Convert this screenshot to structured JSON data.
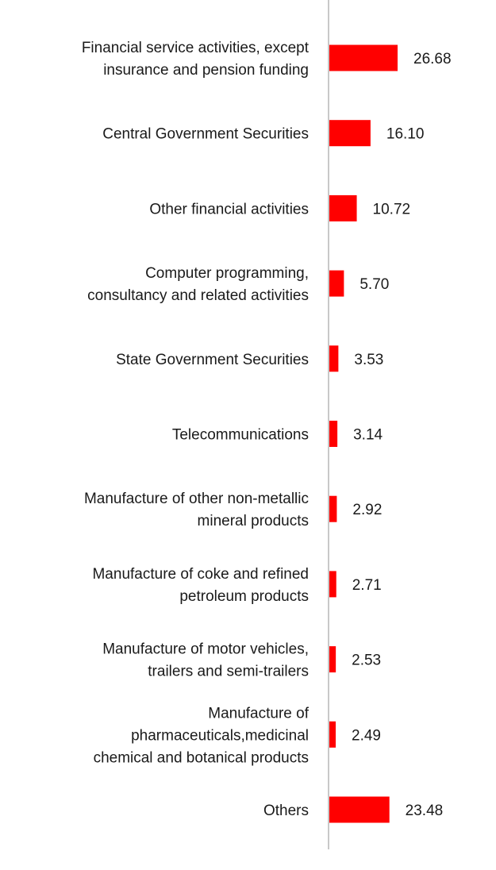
{
  "chart_data": {
    "type": "bar",
    "orientation": "horizontal",
    "categories": [
      [
        "Financial service activities, except",
        "insurance and pension funding"
      ],
      [
        "Central Government Securities"
      ],
      [
        "Other financial activities"
      ],
      [
        "Computer programming,",
        "consultancy and related activities"
      ],
      [
        "State Government Securities"
      ],
      [
        "Telecommunications"
      ],
      [
        "Manufacture of other non-metallic",
        "mineral products"
      ],
      [
        "Manufacture of coke and refined",
        "petroleum products"
      ],
      [
        "Manufacture of motor vehicles,",
        "trailers and semi-trailers"
      ],
      [
        "Manufacture of",
        "pharmaceuticals,medicinal",
        "chemical and botanical products"
      ],
      [
        "Others"
      ]
    ],
    "values": [
      26.68,
      16.1,
      10.72,
      5.7,
      3.53,
      3.14,
      2.92,
      2.71,
      2.53,
      2.49,
      23.48
    ],
    "value_labels": [
      "26.68",
      "16.10",
      "10.72",
      "5.70",
      "3.53",
      "3.14",
      "2.92",
      "2.71",
      "2.53",
      "2.49",
      "23.48"
    ],
    "bar_color": "#ff0000",
    "axis_color": "#c8c8c8",
    "xlim": [
      0,
      100
    ],
    "grid": false,
    "legend": "none"
  }
}
